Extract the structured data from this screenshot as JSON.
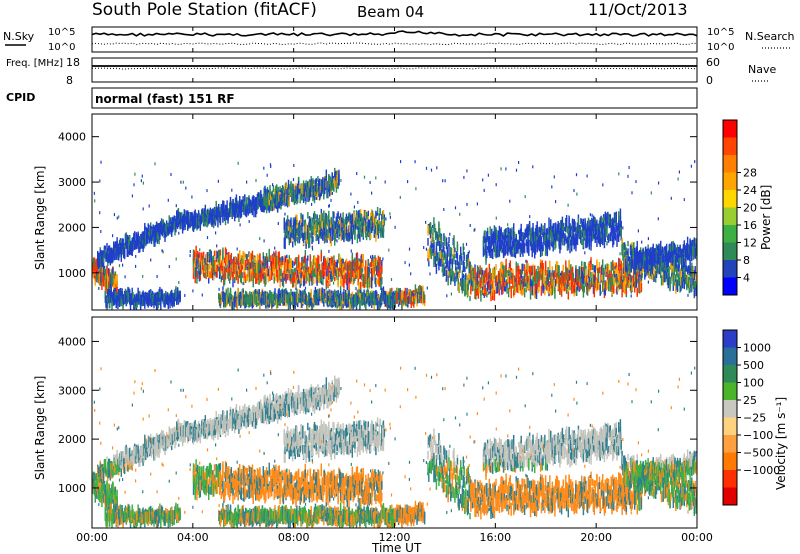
{
  "header": {
    "title": "South Pole Station (fitACF)",
    "beam": "Beam 04",
    "date": "11/Oct/2013"
  },
  "chart_data": [
    {
      "type": "line",
      "name": "noise-panel",
      "ylabel_left": "N.Sky",
      "ylabel_right": "N.Search",
      "left_ticks": [
        "10^5",
        "10^0"
      ],
      "right_ticks": [
        "10^5",
        "10^0"
      ]
    },
    {
      "type": "line",
      "name": "freq-panel",
      "ylabel_left": "Freq. [MHz]",
      "ylabel_right": "Nave",
      "left_ticks": [
        "18",
        "8"
      ],
      "right_ticks": [
        "60",
        "0"
      ],
      "ylim_left": [
        8,
        18
      ],
      "ylim_right": [
        0,
        60
      ]
    },
    {
      "type": "table",
      "name": "cpid-panel",
      "label": "CPID",
      "value": "normal (fast) 151 RF"
    },
    {
      "type": "heatmap",
      "name": "power-panel",
      "ylabel": "Slant Range [km]",
      "y_ticks": [
        "1000",
        "2000",
        "3000",
        "4000"
      ],
      "ylim": [
        180,
        4500
      ],
      "xlim_hours": [
        0,
        24
      ],
      "colorbar": {
        "label": "Power [dB]",
        "ticks": [
          "4",
          "8",
          "12",
          "16",
          "20",
          "24",
          "28"
        ],
        "colors": [
          "#0000ff",
          "#2244b8",
          "#2e8b57",
          "#3cb043",
          "#9acd32",
          "#ffd700",
          "#ffa500",
          "#ff7f00",
          "#ff4500",
          "#ff0000"
        ]
      }
    },
    {
      "type": "heatmap",
      "name": "velocity-panel",
      "ylabel": "Slant Range [km]",
      "y_ticks": [
        "1000",
        "2000",
        "3000",
        "4000"
      ],
      "ylim": [
        180,
        4500
      ],
      "xlim_hours": [
        0,
        24
      ],
      "colorbar": {
        "label": "Velocity [m s⁻¹]",
        "ticks": [
          "1000",
          "500",
          "100",
          "25",
          "−25",
          "−100",
          "−500",
          "−1000"
        ],
        "colors": [
          "#2a3ec8",
          "#2a6f9a",
          "#2e8b57",
          "#4ab52a",
          "#c8c8c0",
          "#ffd27f",
          "#ffa040",
          "#ff7a00",
          "#ff3000",
          "#e00000"
        ]
      }
    }
  ],
  "x_axis": {
    "label": "Time UT",
    "ticks": [
      "00:00",
      "04:00",
      "08:00",
      "12:00",
      "16:00",
      "20:00",
      "00:00"
    ]
  },
  "echo_colors": {
    "power_core": "#ff3000",
    "power_mid": "#ffa500",
    "power_edge": "#2e8b57",
    "power_weak": "#1f3fc8",
    "vel_grey": "#c4c4bc",
    "vel_orange": "#ff8c1a",
    "vel_green": "#3cb043",
    "vel_teal": "#2f7f8f"
  }
}
